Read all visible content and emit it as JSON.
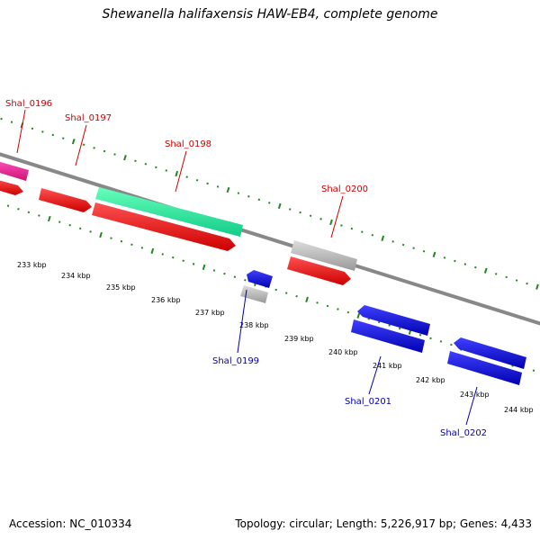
{
  "title": "Shewanella halifaxensis HAW-EB4, complete genome",
  "footer": {
    "accession": "Accession: NC_010334",
    "summary": "Topology: circular; Length: 5,226,917 bp; Genes: 4,433"
  },
  "gene_labels": {
    "forward": [
      "Shal_0196",
      "Shal_0197",
      "Shal_0198",
      "Shal_0200"
    ],
    "reverse": [
      "Shal_0199",
      "Shal_0201",
      "Shal_0202"
    ]
  },
  "kbp_ticks": [
    "233 kbp",
    "234 kbp",
    "235 kbp",
    "236 kbp",
    "237 kbp",
    "238 kbp",
    "239 kbp",
    "240 kbp",
    "241 kbp",
    "242 kbp",
    "243 kbp",
    "244 kbp"
  ],
  "colors": {
    "forward_label": "#cc0000",
    "reverse_label": "#0000aa",
    "cds_forward": "#ff0000",
    "cds_reverse": "#0000ee",
    "rna": "#22ee99",
    "pseudo": "#bbbbbb",
    "misc": "#ee2288",
    "backbone": "#888888",
    "ticks": "#228822"
  }
}
